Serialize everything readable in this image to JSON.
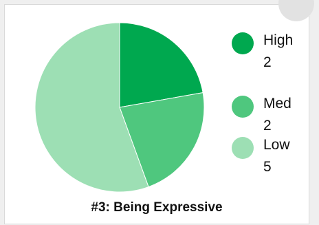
{
  "chart_data": {
    "type": "pie",
    "title": "#3: Being Expressive",
    "slices": [
      {
        "label": "High",
        "value": 2,
        "color": "#00a84f"
      },
      {
        "label": "Med",
        "value": 2,
        "color": "#4fc77e"
      },
      {
        "label": "Low",
        "value": 5,
        "color": "#9ddfb4"
      }
    ],
    "legend_position": "right"
  },
  "legend": [
    {
      "label": "High",
      "value": "2",
      "color": "#00a84f"
    },
    {
      "label": "Med",
      "value": "2",
      "color": "#4fc77e"
    },
    {
      "label": "Low",
      "value": "5",
      "color": "#9ddfb4"
    }
  ]
}
